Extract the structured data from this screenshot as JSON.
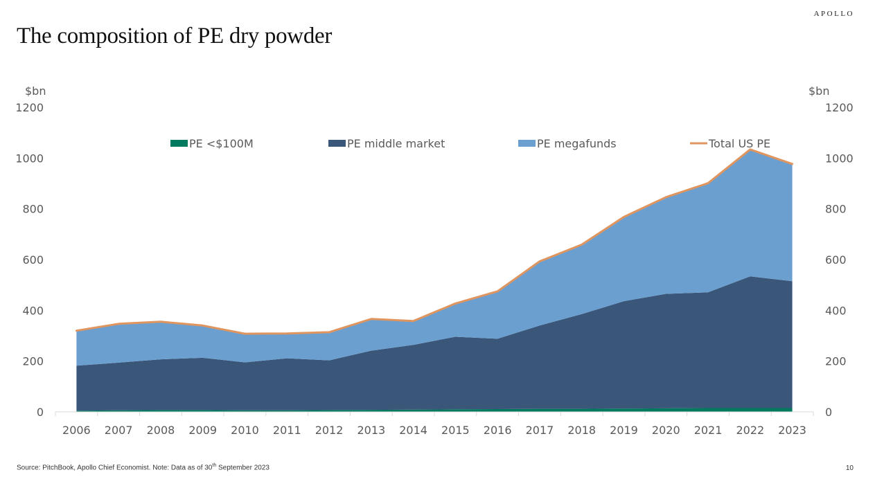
{
  "header": {
    "brand": "APOLLO",
    "title": "The composition of PE dry powder"
  },
  "footer": {
    "source_prefix": "Source: PitchBook, Apollo Chief Economist. Note: Data as of 30",
    "source_sup": "th",
    "source_suffix": " September 2023",
    "page_number": "10"
  },
  "colors": {
    "pe_small": "#007a5e",
    "pe_middle": "#3a5779",
    "pe_mega": "#6a9fd0",
    "total": "#e0955f"
  },
  "chart_data": {
    "type": "area",
    "stacked": true,
    "title": "",
    "ylabel_left": "$bn",
    "ylabel_right": "$bn",
    "ylim": [
      0,
      1200
    ],
    "yticks": [
      0,
      200,
      400,
      600,
      800,
      1000,
      1200
    ],
    "legend_position": "top",
    "grid": false,
    "categories": [
      "2006",
      "2007",
      "2008",
      "2009",
      "2010",
      "2011",
      "2012",
      "2013",
      "2014",
      "2015",
      "2016",
      "2017",
      "2018",
      "2019",
      "2020",
      "2021",
      "2022",
      "2023"
    ],
    "series": [
      {
        "name": "PE <$100M",
        "type": "area",
        "color": "#007a5e",
        "values": [
          5,
          6,
          7,
          7,
          6,
          6,
          7,
          8,
          9,
          10,
          11,
          12,
          12,
          13,
          14,
          15,
          15,
          15
        ]
      },
      {
        "name": "PE middle market",
        "type": "area",
        "color": "#3a5779",
        "values": [
          177,
          188,
          200,
          206,
          189,
          205,
          196,
          233,
          255,
          286,
          277,
          328,
          373,
          423,
          451,
          456,
          519,
          500
        ]
      },
      {
        "name": "PE megafunds",
        "type": "area",
        "color": "#6a9fd0",
        "values": [
          138,
          153,
          148,
          127,
          113,
          98,
          111,
          125,
          94,
          131,
          187,
          253,
          274,
          332,
          381,
          430,
          500,
          462
        ]
      },
      {
        "name": "Total US PE",
        "type": "line",
        "color": "#e0955f",
        "values": [
          320,
          347,
          355,
          340,
          308,
          309,
          314,
          366,
          358,
          427,
          475,
          593,
          659,
          768,
          846,
          901,
          1034,
          977
        ]
      }
    ]
  }
}
